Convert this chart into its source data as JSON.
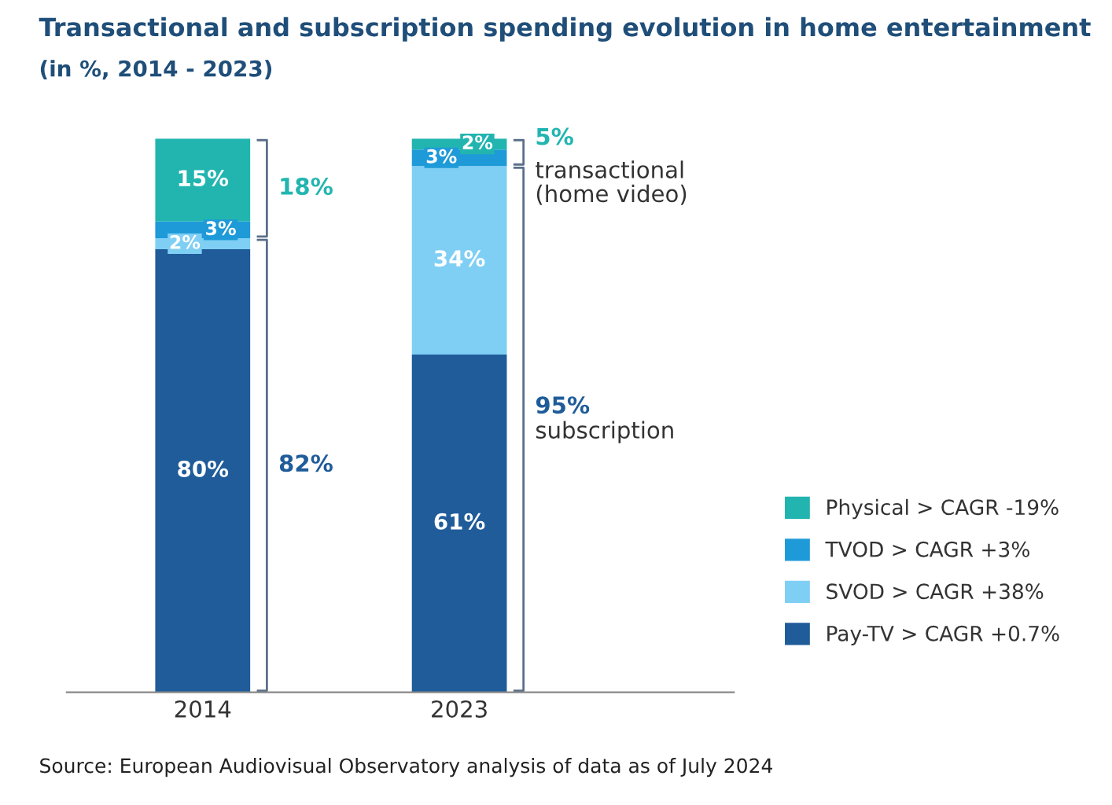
{
  "chart_data": {
    "type": "bar",
    "stacked": true,
    "title": "Transactional and subscription spending evolution in home entertainment",
    "subtitle": "(in %, 2014 - 2023)",
    "categories": [
      "2014",
      "2023"
    ],
    "series": [
      {
        "name": "Pay-TV > CAGR +0.7%",
        "color": "#1f5c99",
        "values": [
          80,
          61
        ],
        "value_labels": [
          "80%",
          "61%"
        ]
      },
      {
        "name": "SVOD > CAGR +38%",
        "color": "#7fcff4",
        "values": [
          2,
          34
        ],
        "value_labels": [
          "2%",
          "34%"
        ]
      },
      {
        "name": "TVOD > CAGR +3%",
        "color": "#1e9ad8",
        "values": [
          3,
          3
        ],
        "value_labels": [
          "3%",
          "3%"
        ]
      },
      {
        "name": "Physical > CAGR -19%",
        "color": "#22b5b0",
        "values": [
          15,
          2
        ],
        "value_labels": [
          "15%",
          "2%"
        ]
      }
    ],
    "tick_labels": "x",
    "legend": "right",
    "grid": false,
    "annotations": [
      "18%",
      "82%",
      "5%",
      "transactional\n(home video)",
      "95%",
      "subscription",
      "Source: European Audiovisual Observatory analysis of data as of July 2024"
    ]
  }
}
